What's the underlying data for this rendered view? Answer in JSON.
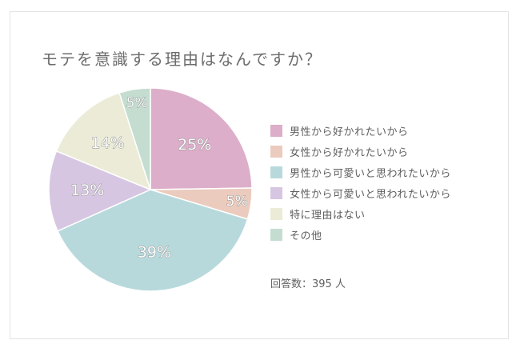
{
  "chart_data": {
    "type": "pie",
    "title": "モテを意識する理由はなんですか？",
    "slices": [
      {
        "label": "男性から好かれたいから",
        "value": 25,
        "display": "25%",
        "color": "#dcaec9"
      },
      {
        "label": "女性から好かれたいから",
        "value": 5,
        "display": "5%",
        "color": "#ebcbbd"
      },
      {
        "label": "男性から可愛いと思われたいから",
        "value": 39,
        "display": "39%",
        "color": "#b8d9dc"
      },
      {
        "label": "女性から可愛いと思われたいから",
        "value": 13,
        "display": "13%",
        "color": "#d7c6e2"
      },
      {
        "label": "特に理由はない",
        "value": 14,
        "display": "14%",
        "color": "#ebebd7"
      },
      {
        "label": "その他",
        "value": 5,
        "display": "5%",
        "color": "#c4ddd0"
      }
    ],
    "legend_position": "right",
    "note": "回答数：395 人"
  }
}
